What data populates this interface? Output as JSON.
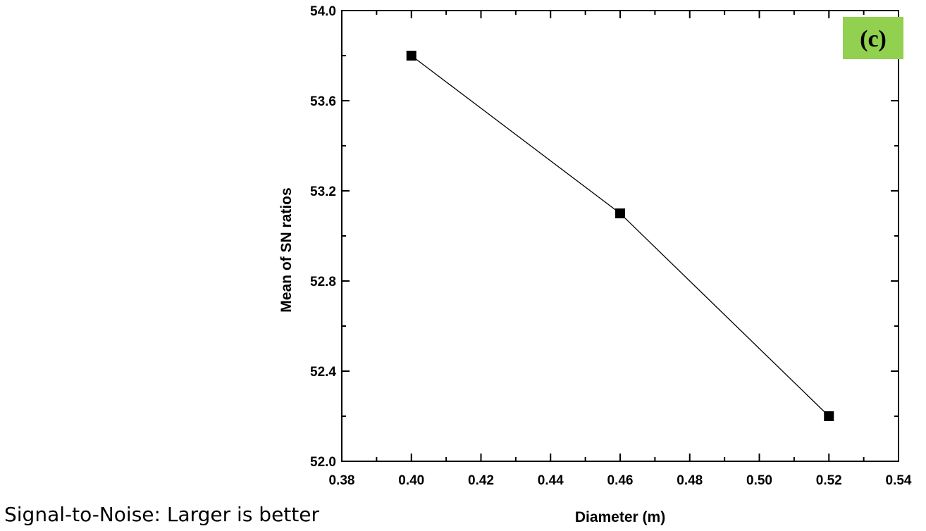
{
  "chart_data": {
    "type": "line",
    "panel_label": "(c)",
    "panel_label_bg": "#92d050",
    "xlabel": "Diameter (m)",
    "ylabel": "Mean of SN ratios",
    "xlim": [
      0.38,
      0.54
    ],
    "ylim": [
      52.0,
      54.0
    ],
    "x_ticks": [
      "0.38",
      "0.40",
      "0.42",
      "0.44",
      "0.46",
      "0.48",
      "0.50",
      "0.52",
      "0.54"
    ],
    "y_ticks": [
      "52.0",
      "52.4",
      "52.8",
      "53.2",
      "53.6",
      "54.0"
    ],
    "x": [
      0.4,
      0.46,
      0.52
    ],
    "series": [
      {
        "values": [
          53.8,
          53.1,
          52.2
        ],
        "color": "#000000",
        "marker": "square"
      }
    ],
    "grid": false,
    "legend": "none"
  },
  "footnote": "Signal-to-Noise: Larger is better"
}
